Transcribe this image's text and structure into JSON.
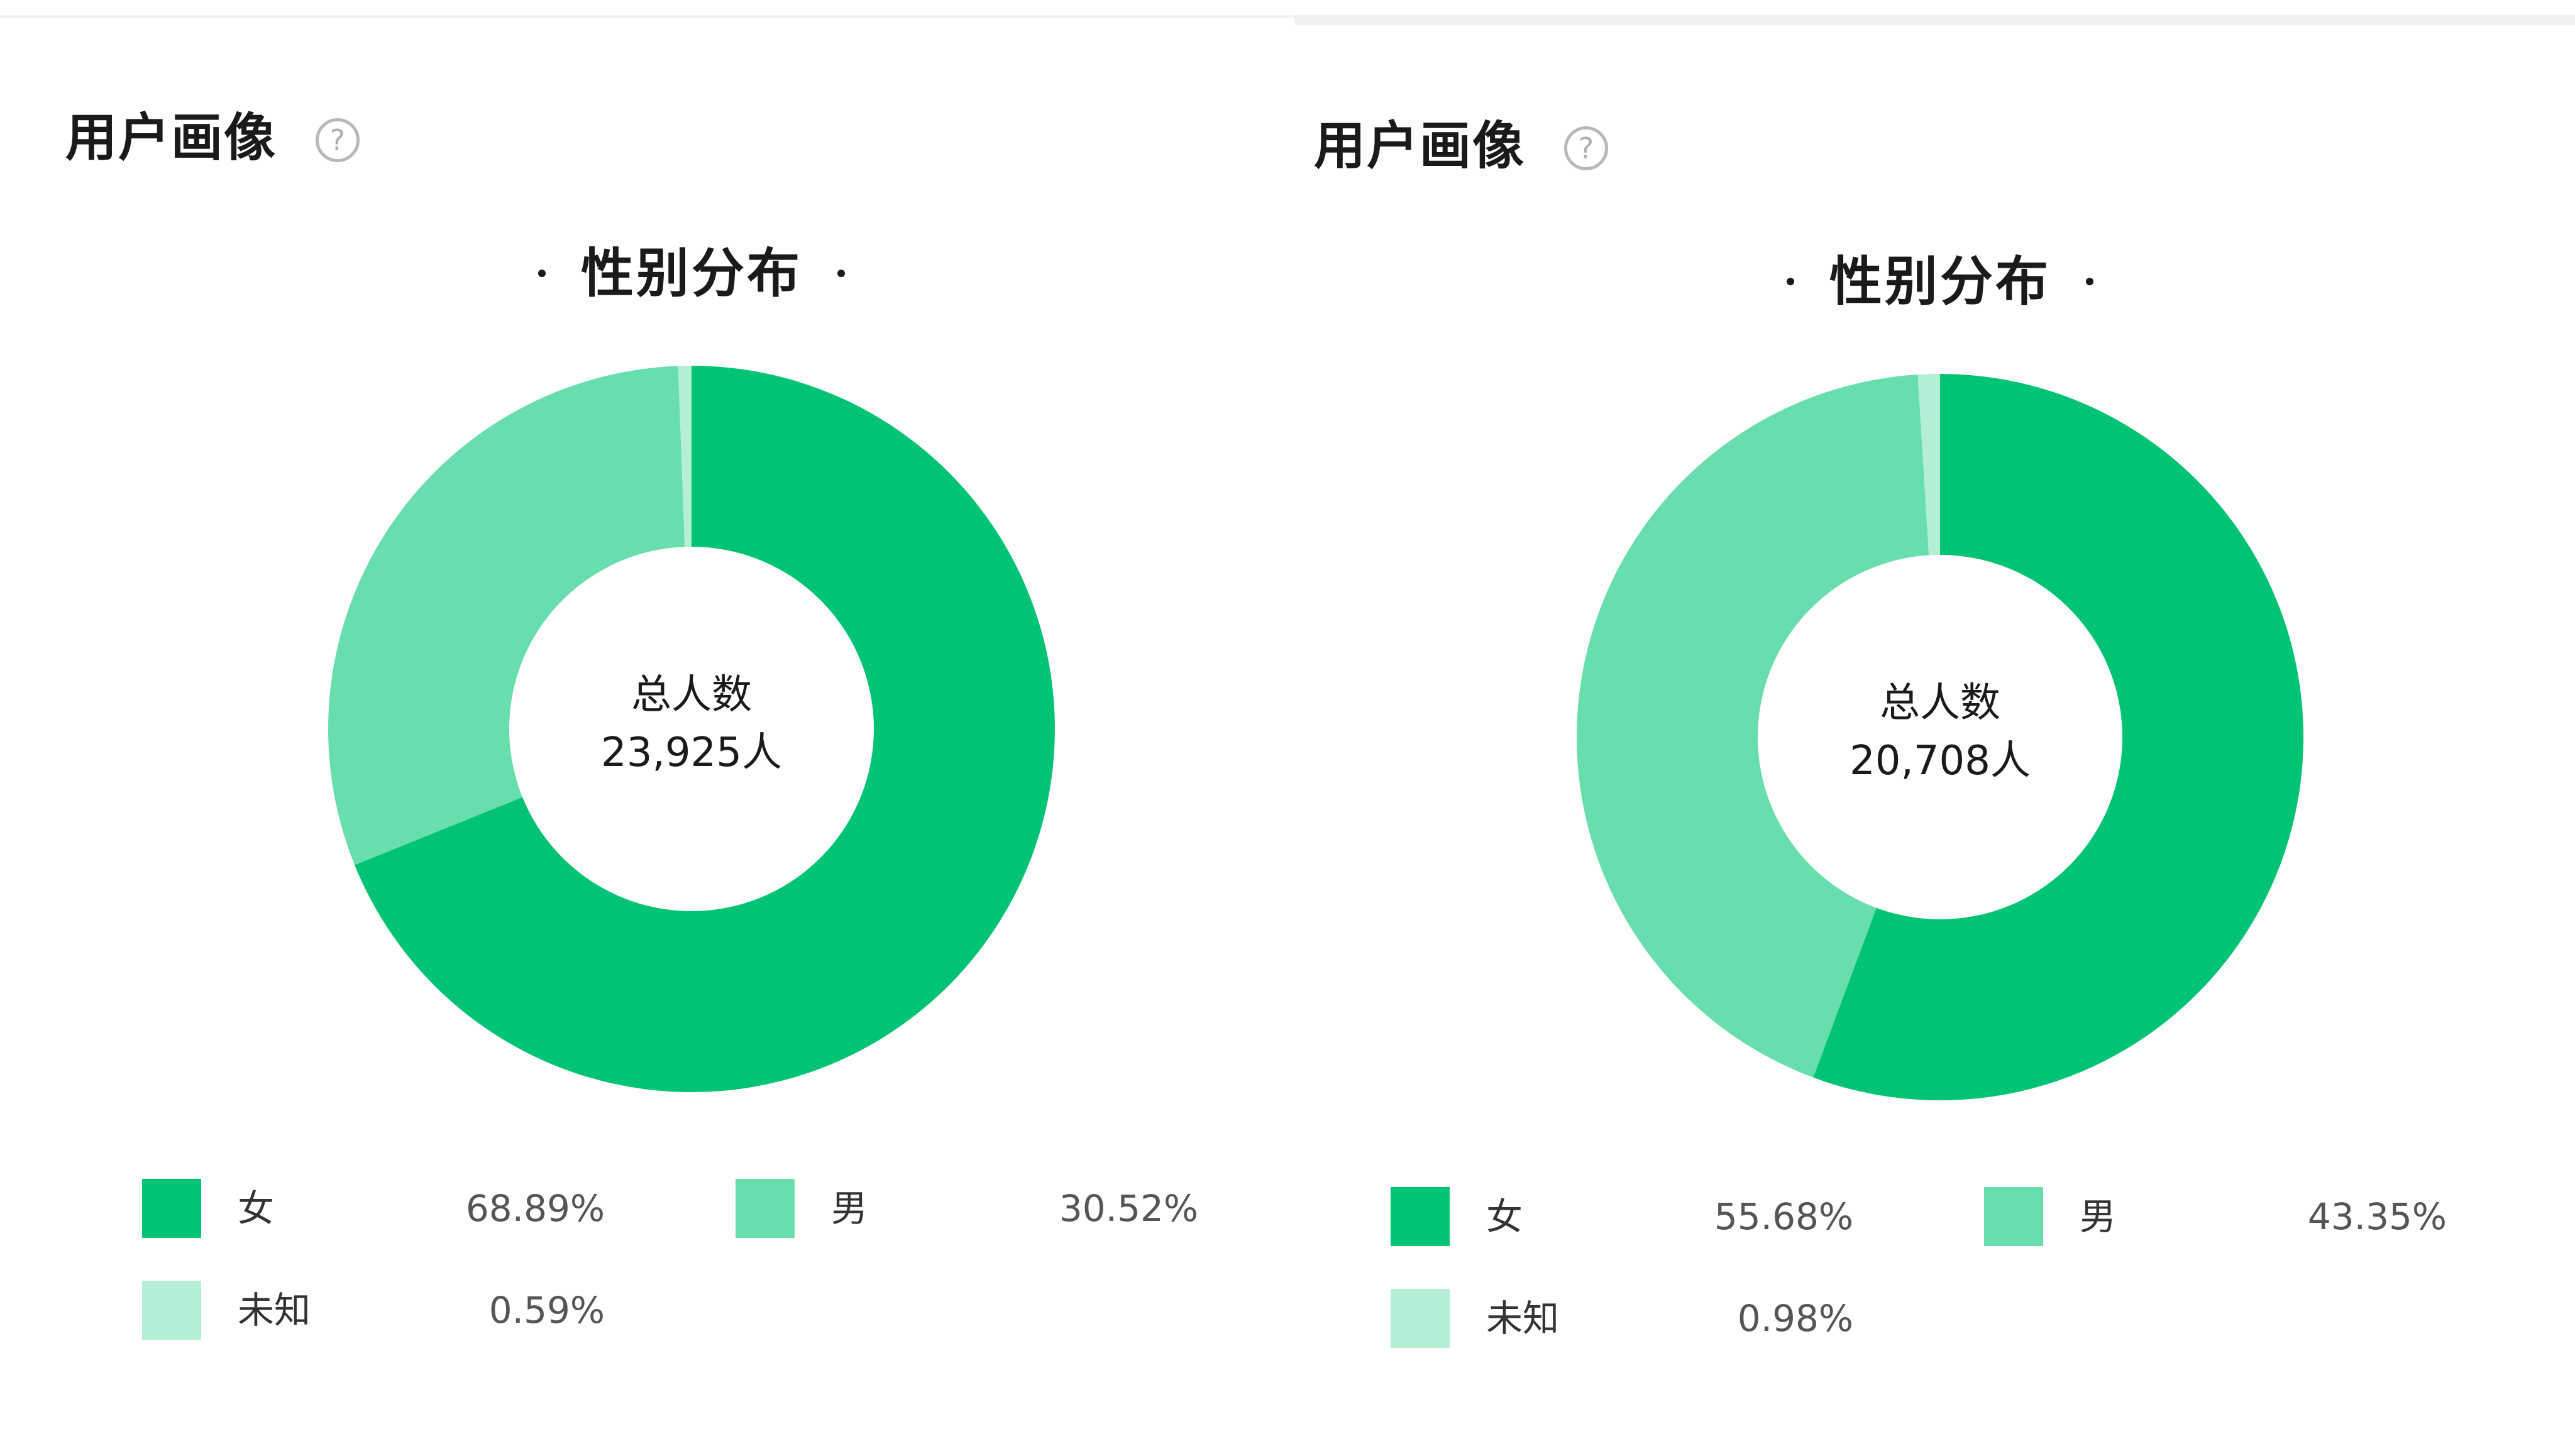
{
  "panels": [
    {
      "section_title": "用户画像",
      "help_glyph": "?",
      "chart_title": "性别分布",
      "center": {
        "label": "总人数",
        "total": "23,925人"
      },
      "legend": [
        {
          "label": "女",
          "value": "68.89%"
        },
        {
          "label": "男",
          "value": "30.52%"
        },
        {
          "label": "未知",
          "value": "0.59%"
        }
      ]
    },
    {
      "section_title": "用户画像",
      "help_glyph": "?",
      "chart_title": "性别分布",
      "center": {
        "label": "总人数",
        "total": "20,708人"
      },
      "legend": [
        {
          "label": "女",
          "value": "55.68%"
        },
        {
          "label": "男",
          "value": "43.35%"
        },
        {
          "label": "未知",
          "value": "0.98%"
        }
      ]
    }
  ],
  "colors": {
    "female": "#00c473",
    "male": "#68deac",
    "unknown": "#b4eed5"
  },
  "chart_data": [
    {
      "type": "pie",
      "title": "性别分布",
      "categories": [
        "女",
        "男",
        "未知"
      ],
      "values": [
        68.89,
        30.52,
        0.59
      ],
      "total": 23925,
      "legend_position": "bottom",
      "colors": [
        "#00c473",
        "#68deac",
        "#b4eed5"
      ]
    },
    {
      "type": "pie",
      "title": "性别分布",
      "categories": [
        "女",
        "男",
        "未知"
      ],
      "values": [
        55.68,
        43.35,
        0.98
      ],
      "total": 20708,
      "legend_position": "bottom",
      "colors": [
        "#00c473",
        "#68deac",
        "#b4eed5"
      ]
    }
  ]
}
